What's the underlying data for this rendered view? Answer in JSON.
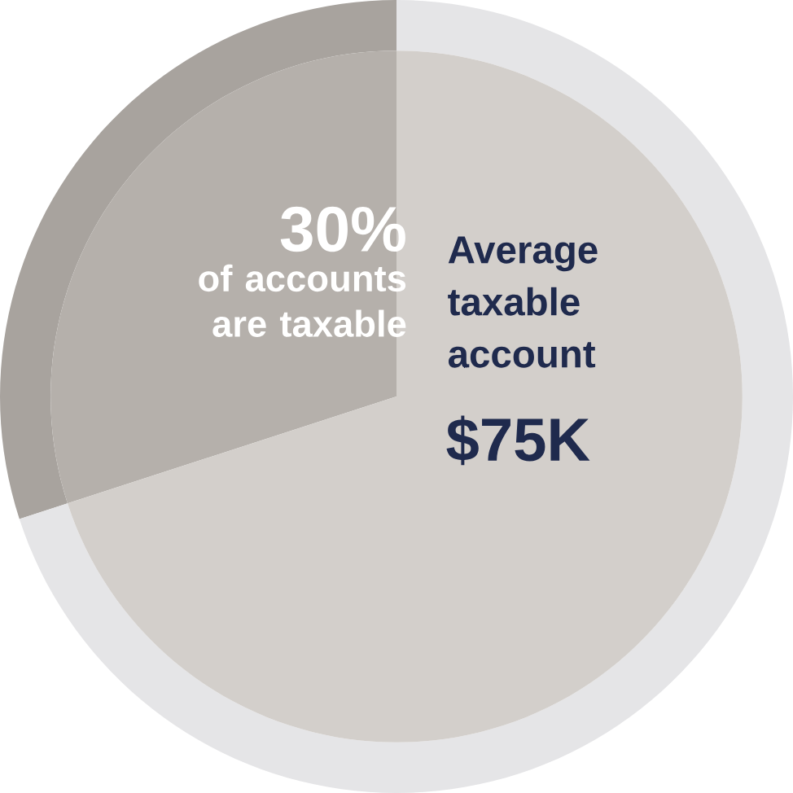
{
  "chart_data": {
    "type": "pie",
    "categories": [
      "of accounts are taxable",
      null
    ],
    "series": [
      {
        "values": [
          30,
          70
        ],
        "colors": [
          "#a8a39e",
          "#e5e5e7"
        ]
      },
      {
        "values": [
          30,
          70
        ],
        "colors": [
          "#b5b0ab",
          "#d3cfcb"
        ]
      }
    ],
    "value_labels": [
      "30%",
      null
    ],
    "annotations": [
      "Average taxable account",
      "$75K"
    ]
  }
}
